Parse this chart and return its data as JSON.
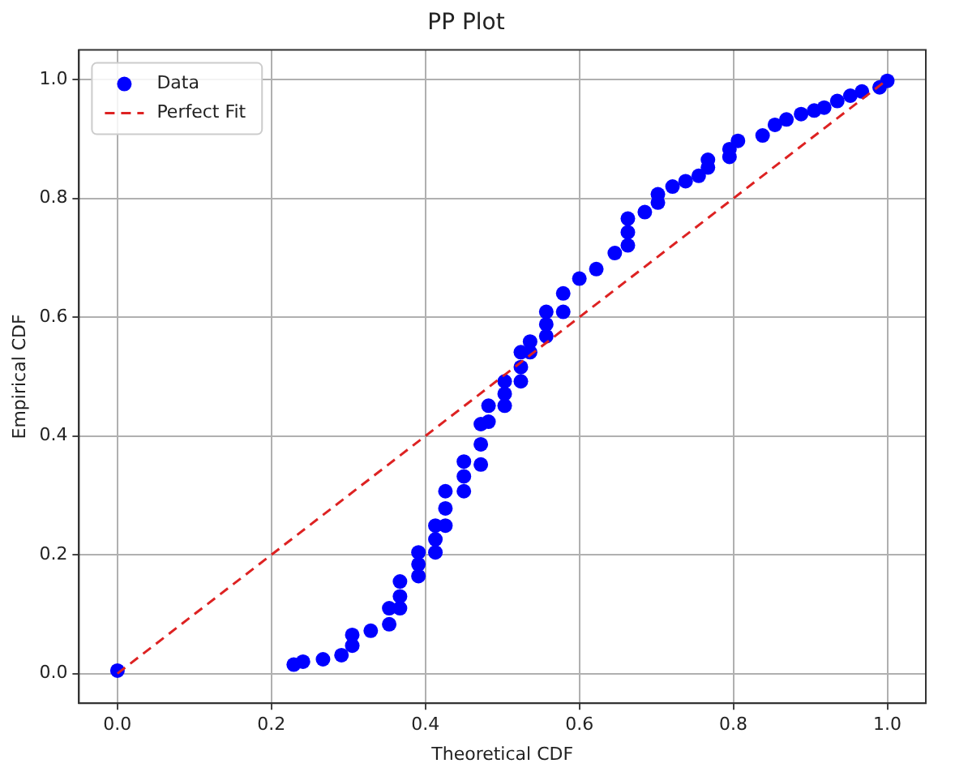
{
  "chart_data": {
    "type": "scatter",
    "title": "PP Plot",
    "xlabel": "Theoretical CDF",
    "ylabel": "Empirical CDF",
    "xlim": [
      -0.05,
      1.05
    ],
    "ylim": [
      -0.05,
      1.05
    ],
    "xticks": [
      {
        "value": 0,
        "label": "0.0"
      },
      {
        "value": 0.2,
        "label": "0.2"
      },
      {
        "value": 0.4,
        "label": "0.4"
      },
      {
        "value": 0.6,
        "label": "0.6"
      },
      {
        "value": 0.8,
        "label": "0.8"
      },
      {
        "value": 1,
        "label": "1.0"
      }
    ],
    "yticks": [
      {
        "value": 0,
        "label": "0.0"
      },
      {
        "value": 0.2,
        "label": "0.2"
      },
      {
        "value": 0.4,
        "label": "0.4"
      },
      {
        "value": 0.6,
        "label": "0.6"
      },
      {
        "value": 0.8,
        "label": "0.8"
      },
      {
        "value": 1,
        "label": "1.0"
      }
    ],
    "grid": true,
    "legend": "top left",
    "marker": "circle",
    "series": [
      {
        "name": "Data",
        "color": "#0000ff",
        "x": [
          0,
          0.229,
          0.241,
          0.267,
          0.291,
          0.305,
          0.305,
          0.329,
          0.353,
          0.353,
          0.367,
          0.367,
          0.367,
          0.391,
          0.391,
          0.391,
          0.413,
          0.413,
          0.413,
          0.426,
          0.426,
          0.426,
          0.45,
          0.45,
          0.45,
          0.472,
          0.472,
          0.472,
          0.482,
          0.482,
          0.503,
          0.503,
          0.503,
          0.524,
          0.524,
          0.524,
          0.536,
          0.536,
          0.557,
          0.557,
          0.557,
          0.579,
          0.579,
          0.6,
          0.622,
          0.646,
          0.663,
          0.663,
          0.663,
          0.685,
          0.702,
          0.702,
          0.721,
          0.738,
          0.755,
          0.767,
          0.767,
          0.795,
          0.795,
          0.806,
          0.838,
          0.854,
          0.869,
          0.888,
          0.905,
          0.918,
          0.935,
          0.952,
          0.967,
          0.99,
          1.0
        ],
        "values": [
          0.005,
          0.015,
          0.02,
          0.024,
          0.031,
          0.047,
          0.065,
          0.072,
          0.083,
          0.11,
          0.11,
          0.13,
          0.155,
          0.164,
          0.184,
          0.204,
          0.204,
          0.226,
          0.249,
          0.249,
          0.278,
          0.307,
          0.307,
          0.332,
          0.357,
          0.352,
          0.386,
          0.42,
          0.424,
          0.451,
          0.451,
          0.471,
          0.492,
          0.492,
          0.516,
          0.541,
          0.541,
          0.559,
          0.568,
          0.588,
          0.609,
          0.609,
          0.64,
          0.665,
          0.681,
          0.708,
          0.721,
          0.743,
          0.766,
          0.777,
          0.793,
          0.807,
          0.82,
          0.829,
          0.838,
          0.852,
          0.865,
          0.87,
          0.883,
          0.897,
          0.906,
          0.924,
          0.933,
          0.942,
          0.948,
          0.953,
          0.964,
          0.973,
          0.98,
          0.987,
          0.998
        ]
      },
      {
        "name": "Perfect Fit",
        "type": "line",
        "color": "#dd2222",
        "line_style": "dashed",
        "marker": "none",
        "x": [
          0,
          1
        ],
        "values": [
          0,
          1
        ]
      }
    ]
  }
}
